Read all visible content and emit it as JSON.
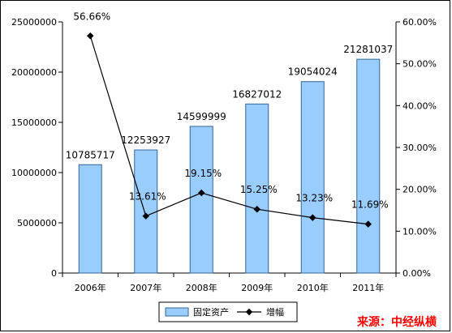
{
  "chart_data": {
    "type": "bar+line",
    "categories": [
      "2006年",
      "2007年",
      "2008年",
      "2009年",
      "2010年",
      "2011年"
    ],
    "bar_series": {
      "name": "固定资产",
      "values": [
        10785717,
        12253927,
        14599999,
        16827012,
        19054024,
        21281037
      ],
      "labels": [
        "10785717",
        "12253927",
        "14599999",
        "16827012",
        "19054024",
        "21281037"
      ],
      "color": "#99ccff",
      "border": "#336699"
    },
    "line_series": {
      "name": "增幅",
      "values": [
        56.66,
        13.61,
        19.15,
        15.25,
        13.23,
        11.69
      ],
      "labels": [
        "56.66%",
        "13.61%",
        "19.15%",
        "15.25%",
        "13.23%",
        "11.69%"
      ],
      "color": "#000000"
    },
    "y_left": {
      "range": [
        0,
        25000000
      ],
      "ticks": [
        0,
        5000000,
        10000000,
        15000000,
        20000000,
        25000000
      ],
      "tick_labels": [
        "0",
        "5000000",
        "10000000",
        "15000000",
        "20000000",
        "25000000"
      ]
    },
    "y_right": {
      "range": [
        0,
        60
      ],
      "ticks": [
        0,
        10,
        20,
        30,
        40,
        50,
        60
      ],
      "tick_labels": [
        "0.00%",
        "10.00%",
        "20.00%",
        "30.00%",
        "40.00%",
        "50.00%",
        "60.00%"
      ]
    },
    "legend_position": "bottom",
    "grid": false
  },
  "source_text": "来源：中经纵横"
}
